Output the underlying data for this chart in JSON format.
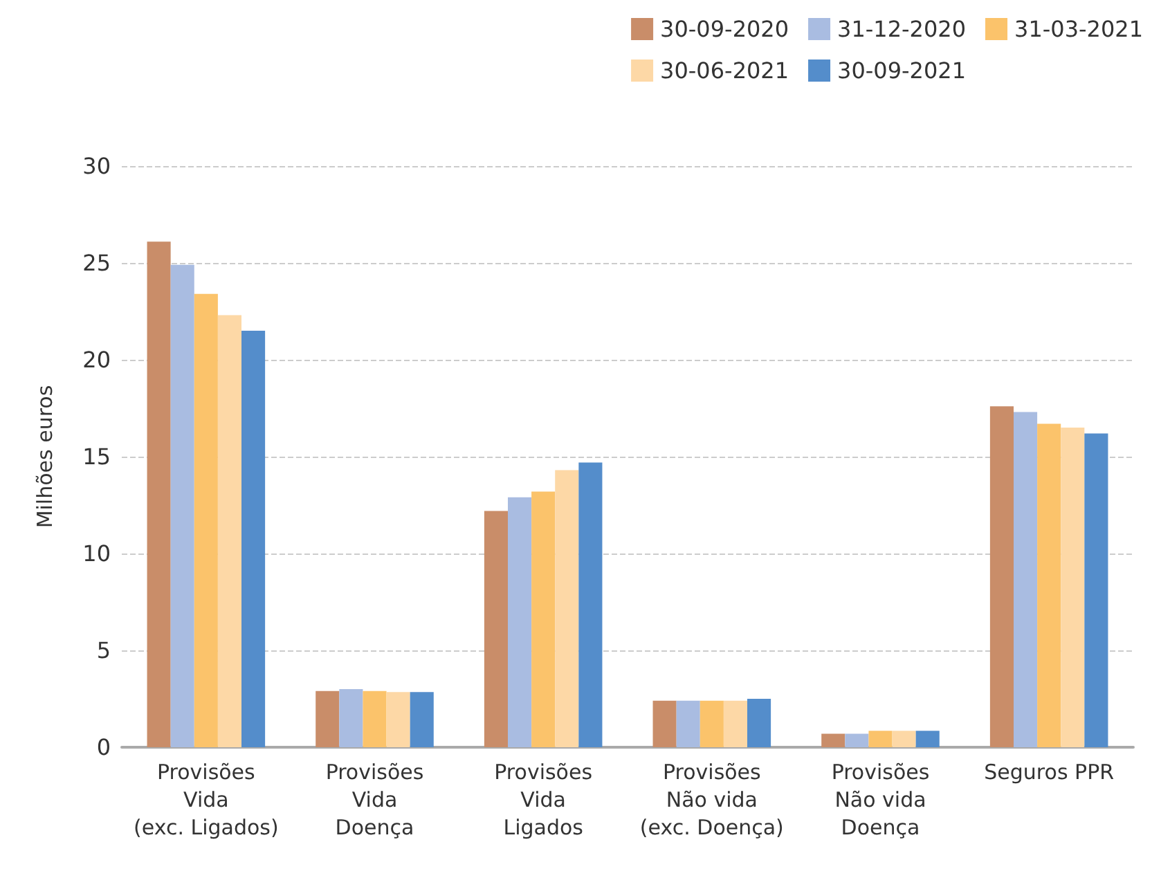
{
  "chart_data": {
    "type": "bar",
    "ylabel": "Milhões euros",
    "categories": [
      "Provisões\nVida\n(exc. Ligados)",
      "Provisões\nVida\nDoença",
      "Provisões\nVida\nLigados",
      "Provisões\nNão vida\n(exc. Doença)",
      "Provisões\nNão vida\nDoença",
      "Seguros PPR"
    ],
    "series": [
      {
        "name": "30-09-2020",
        "color": "#c98d69",
        "values": [
          26.1,
          2.9,
          12.2,
          2.4,
          0.7,
          17.6
        ]
      },
      {
        "name": "31-12-2020",
        "color": "#a9bce1",
        "values": [
          24.9,
          3.0,
          12.9,
          2.4,
          0.7,
          17.3
        ]
      },
      {
        "name": "31-03-2021",
        "color": "#fbc36b",
        "values": [
          23.4,
          2.9,
          13.2,
          2.4,
          0.85,
          16.7
        ]
      },
      {
        "name": "30-06-2021",
        "color": "#fdd8a6",
        "values": [
          22.3,
          2.85,
          14.3,
          2.4,
          0.85,
          16.5
        ]
      },
      {
        "name": "30-09-2021",
        "color": "#548dcb",
        "values": [
          21.5,
          2.85,
          14.7,
          2.5,
          0.85,
          16.2
        ]
      }
    ],
    "ylim": [
      0,
      30
    ],
    "yticks": [
      0,
      5,
      10,
      15,
      20,
      25,
      30
    ],
    "grid": "y",
    "legend": "top right"
  }
}
